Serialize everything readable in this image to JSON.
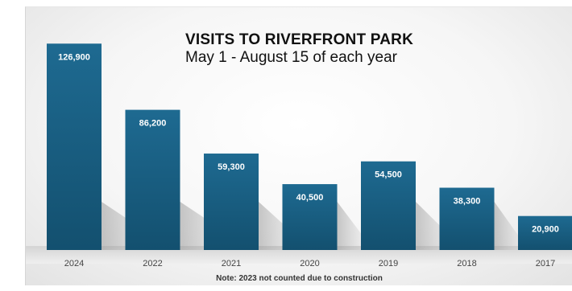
{
  "chart_data": {
    "type": "bar",
    "title": "VISITS TO RIVERFRONT PARK",
    "subtitle": "May 1 - August 15 of each year",
    "categories": [
      "2024",
      "2022",
      "2021",
      "2020",
      "2019",
      "2018",
      "2017"
    ],
    "values": [
      126900,
      86200,
      59300,
      40500,
      54500,
      38300,
      20900
    ],
    "value_labels": [
      "126,900",
      "86,200",
      "59,300",
      "40,500",
      "54,500",
      "38,300",
      "20,900"
    ],
    "note": "Note: 2023 not counted due to construction",
    "ylim": [
      0,
      130000
    ],
    "bar_color": "#17577a",
    "bar_color_light": "#1f6b92",
    "grid": false,
    "legend": "none"
  }
}
